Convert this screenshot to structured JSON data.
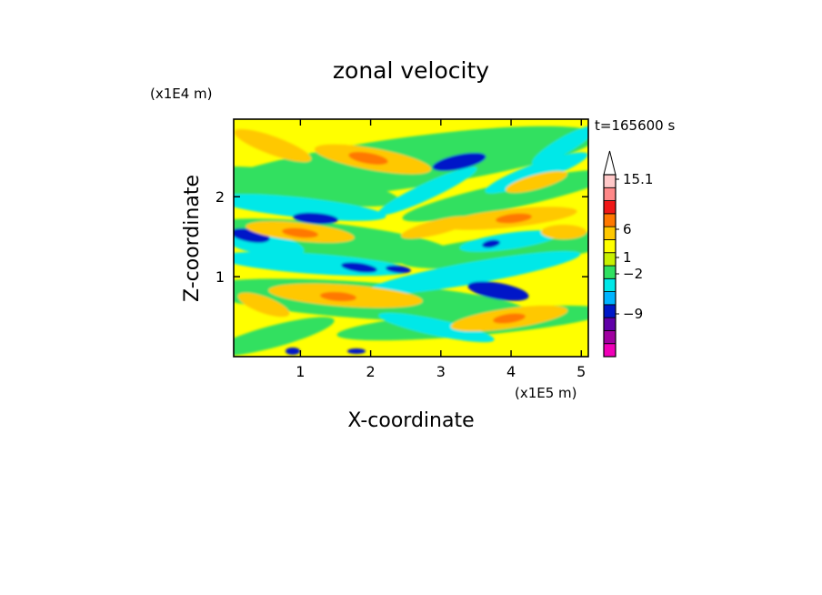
{
  "chart_data": {
    "type": "heatmap",
    "title": "zonal velocity",
    "xlabel": "X-coordinate",
    "ylabel": "Z-coordinate",
    "x_unit": "(x1E5 m)",
    "y_unit": "(x1E4 m)",
    "time_label": "t=165600 s",
    "xlim": [
      0.05,
      5.1
    ],
    "ylim": [
      0,
      2.97
    ],
    "x_ticks": [
      1,
      2,
      3,
      4,
      5
    ],
    "x_tick_labels": [
      "1",
      "2",
      "3",
      "4",
      "5"
    ],
    "y_ticks": [
      1,
      2
    ],
    "y_tick_labels": [
      "1",
      "2"
    ],
    "colorbar": {
      "extend": "max",
      "label_values": [
        "15.1",
        "6",
        "1",
        "−2",
        "−9"
      ],
      "label_levels": [
        15.1,
        6,
        1,
        -2,
        -9
      ],
      "bands": [
        {
          "color": "#f000b8"
        },
        {
          "color": "#a000a0"
        },
        {
          "color": "#6000a8"
        },
        {
          "color": "#0018c8"
        },
        {
          "color": "#00b4ff"
        },
        {
          "color": "#00e8e8"
        },
        {
          "color": "#30e060"
        },
        {
          "color": "#c8f000"
        },
        {
          "color": "#ffff00"
        },
        {
          "color": "#ffc800"
        },
        {
          "color": "#ff7800"
        },
        {
          "color": "#f01818"
        },
        {
          "color": "#ff8888"
        },
        {
          "color": "#ffc8c8"
        }
      ]
    },
    "field_colors": {
      "strong_negative": "#0018c8",
      "moderate_negative": "#00e8e8",
      "weak_negative": "#30e060",
      "weak_positive": "#ffff00",
      "moderate_positive": "#ffc800",
      "strong_positive": "#ff7800"
    }
  }
}
